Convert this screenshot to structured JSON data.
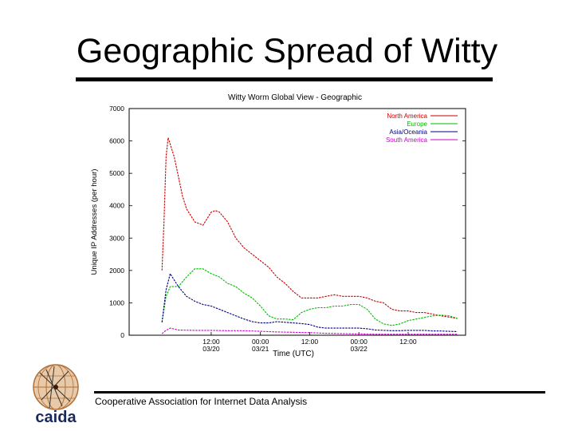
{
  "slide": {
    "title": "Geographic Spread of Witty",
    "footer": "Cooperative Association for Internet Data Analysis",
    "logo_text": "caida"
  },
  "colors": {
    "north_america": "#cc0000",
    "europe": "#00bb00",
    "asia_oceania": "#000080",
    "south_america": "#cc00cc"
  },
  "chart_data": {
    "type": "line",
    "title": "Witty Worm Global View - Geographic",
    "xlabel": "Time (UTC)",
    "ylabel": "Unique IP Addresses (per hour)",
    "ylim": [
      0,
      7000
    ],
    "yticks": [
      0,
      1000,
      2000,
      3000,
      4000,
      5000,
      6000,
      7000
    ],
    "xlim": [
      -8,
      74
    ],
    "xticks": [
      {
        "x": 12,
        "line1": "12:00",
        "line2": "03/20"
      },
      {
        "x": 24,
        "line1": "00:00",
        "line2": "03/21"
      },
      {
        "x": 36,
        "line1": "12:00",
        "line2": ""
      },
      {
        "x": 48,
        "line1": "00:00",
        "line2": "03/22"
      },
      {
        "x": 60,
        "line1": "12:00",
        "line2": ""
      }
    ],
    "legend_position": "top-right",
    "series": [
      {
        "name": "North America",
        "color": "#cc0000",
        "x": [
          0,
          0.5,
          1,
          1.5,
          2,
          3,
          5,
          6,
          7,
          8,
          10,
          11,
          12,
          13,
          14,
          16,
          18,
          20,
          22,
          24,
          26,
          28,
          30,
          32,
          34,
          36,
          38,
          40,
          42,
          44,
          46,
          48,
          50,
          52,
          54,
          56,
          58,
          60,
          62,
          64,
          66,
          68,
          70,
          72
        ],
        "y": [
          2000,
          3500,
          5500,
          6100,
          5900,
          5500,
          4300,
          3900,
          3700,
          3500,
          3400,
          3600,
          3800,
          3850,
          3800,
          3500,
          3000,
          2700,
          2500,
          2300,
          2100,
          1800,
          1600,
          1350,
          1150,
          1150,
          1150,
          1200,
          1250,
          1200,
          1200,
          1200,
          1150,
          1050,
          1000,
          800,
          750,
          750,
          700,
          700,
          650,
          600,
          560,
          520
        ]
      },
      {
        "name": "Europe",
        "color": "#00bb00",
        "x": [
          0,
          1,
          2,
          4,
          6,
          8,
          10,
          12,
          14,
          16,
          18,
          20,
          22,
          24,
          26,
          28,
          30,
          32,
          34,
          36,
          38,
          40,
          42,
          44,
          46,
          48,
          50,
          52,
          54,
          56,
          58,
          60,
          62,
          64,
          66,
          68,
          70,
          72
        ],
        "y": [
          400,
          1200,
          1500,
          1500,
          1800,
          2050,
          2050,
          1900,
          1800,
          1600,
          1500,
          1300,
          1150,
          900,
          600,
          500,
          500,
          480,
          700,
          800,
          850,
          850,
          900,
          900,
          950,
          950,
          800,
          500,
          350,
          300,
          350,
          450,
          500,
          550,
          600,
          620,
          600,
          520
        ]
      },
      {
        "name": "Asia/Oceania",
        "color": "#000080",
        "x": [
          0,
          1,
          2,
          3,
          4,
          6,
          8,
          10,
          12,
          14,
          16,
          18,
          20,
          22,
          24,
          26,
          28,
          30,
          32,
          34,
          36,
          38,
          40,
          42,
          44,
          46,
          48,
          50,
          52,
          54,
          56,
          58,
          60,
          62,
          64,
          66,
          68,
          70,
          72
        ],
        "y": [
          400,
          1400,
          1900,
          1700,
          1500,
          1200,
          1050,
          950,
          900,
          800,
          700,
          600,
          500,
          420,
          380,
          380,
          420,
          400,
          380,
          360,
          330,
          250,
          220,
          220,
          220,
          220,
          220,
          200,
          160,
          150,
          140,
          140,
          150,
          150,
          150,
          130,
          130,
          120,
          110
        ]
      },
      {
        "name": "South America",
        "color": "#cc00cc",
        "x": [
          0,
          1,
          2,
          4,
          8,
          12,
          16,
          20,
          24,
          28,
          32,
          36,
          40,
          44,
          48,
          52,
          56,
          60,
          64,
          68,
          72
        ],
        "y": [
          50,
          150,
          220,
          160,
          150,
          150,
          140,
          140,
          120,
          100,
          90,
          80,
          60,
          50,
          40,
          30,
          30,
          30,
          30,
          30,
          30
        ]
      }
    ]
  }
}
